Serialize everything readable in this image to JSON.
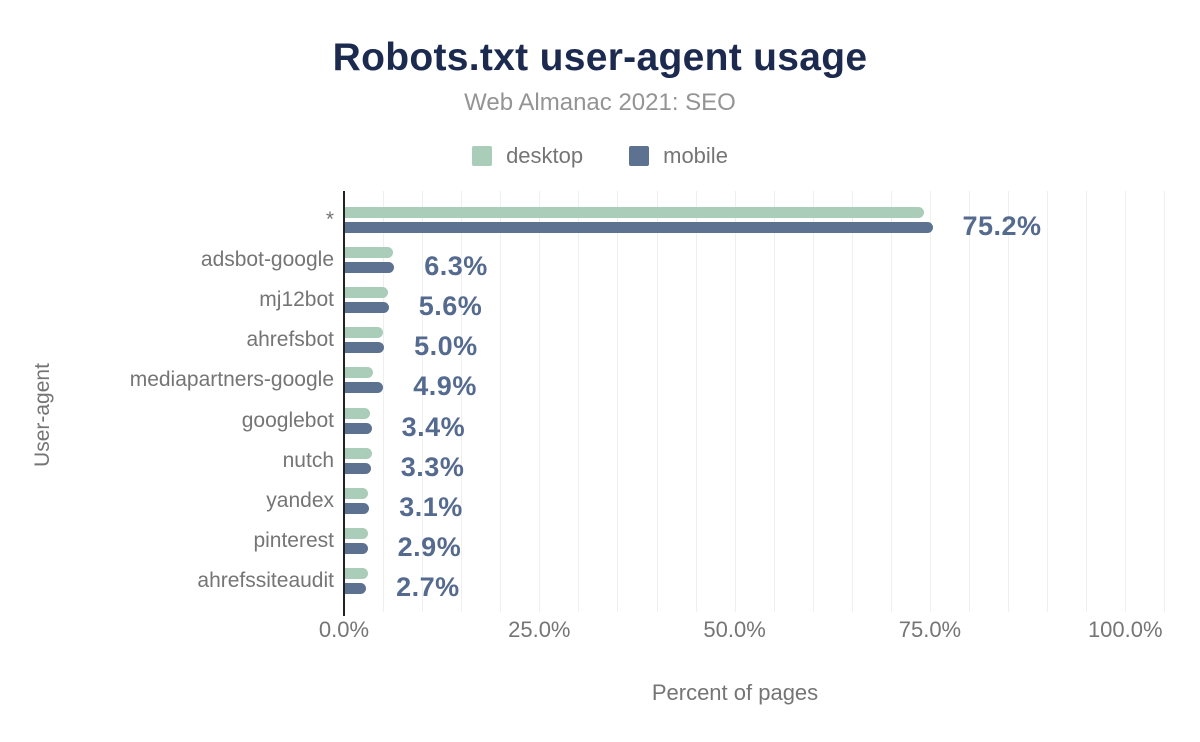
{
  "header": {
    "title": "Robots.txt user-agent usage",
    "subtitle": "Web Almanac 2021: SEO"
  },
  "legend": [
    {
      "label": "desktop",
      "color": "#a9cdb8"
    },
    {
      "label": "mobile",
      "color": "#5d7191"
    }
  ],
  "colors": {
    "title_navy": "#1b2a4e",
    "value_label_blue": "#546a8e",
    "axis_text_gray": "#757575",
    "gridline_gray": "#efefef"
  },
  "chart_data": {
    "type": "bar",
    "orientation": "horizontal",
    "title": "Robots.txt user-agent usage",
    "subtitle": "Web Almanac 2021: SEO",
    "xlabel": "Percent of pages",
    "ylabel": "User-agent",
    "categories": [
      "*",
      "adsbot-google",
      "mj12bot",
      "ahrefsbot",
      "mediapartners-google",
      "googlebot",
      "nutch",
      "yandex",
      "pinterest",
      "ahrefssiteaudit"
    ],
    "series": [
      {
        "name": "desktop",
        "color": "#a9cdb8",
        "values": [
          74.1,
          6.2,
          5.5,
          4.9,
          3.6,
          3.2,
          3.4,
          3.0,
          2.9,
          2.9
        ]
      },
      {
        "name": "mobile",
        "color": "#5d7191",
        "values": [
          75.2,
          6.3,
          5.6,
          5.0,
          4.9,
          3.4,
          3.3,
          3.1,
          2.9,
          2.7
        ]
      }
    ],
    "data_labels": [
      "75.2%",
      "6.3%",
      "5.6%",
      "5.0%",
      "4.9%",
      "3.4%",
      "3.3%",
      "3.1%",
      "2.9%",
      "2.7%"
    ],
    "data_labels_series": "mobile",
    "x_ticks": [
      "0.0%",
      "25.0%",
      "50.0%",
      "75.0%",
      "100.0%"
    ],
    "x_tick_values": [
      0,
      25,
      50,
      75,
      100
    ],
    "xlim": [
      0,
      105
    ],
    "grid": "vertical minor gridlines every 5%",
    "legend_position": "top center"
  }
}
